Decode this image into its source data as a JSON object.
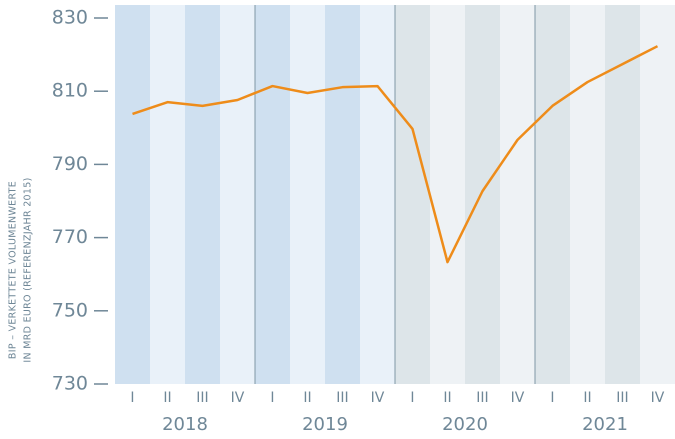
{
  "chart_data": {
    "type": "line",
    "y_label_lines": [
      "BIP – VERKETTETE VOLUMENWERTE",
      "IN MRD EURO (REFERENZJAHR 2015)"
    ],
    "categories": [
      "I",
      "II",
      "III",
      "IV",
      "I",
      "II",
      "III",
      "IV",
      "I",
      "II",
      "III",
      "IV",
      "I",
      "II",
      "III",
      "IV"
    ],
    "x_groups": [
      "2018",
      "2019",
      "2020",
      "2021"
    ],
    "values": [
      803.8,
      807.0,
      806.0,
      807.6,
      811.4,
      809.5,
      811.1,
      811.4,
      799.7,
      763.3,
      782.7,
      796.7,
      806.0,
      812.5,
      817.4,
      822.3
    ],
    "color": "#ee8c1a",
    "ylim": [
      730,
      830
    ],
    "yticks": [
      730,
      750,
      770,
      790,
      810,
      830
    ]
  }
}
